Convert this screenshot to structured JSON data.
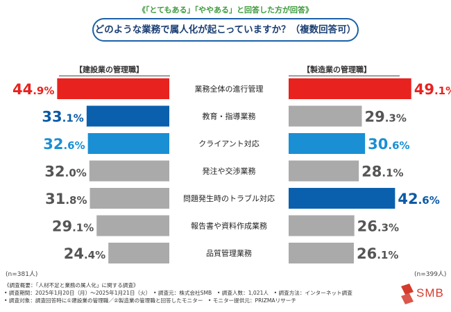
{
  "top_note": "《「とてもある」「ややある」と回答した方が回答》",
  "question": "どのような業務で属人化が起こっていますか？（複数回答可）",
  "left_label": "【建設業の管理職】",
  "right_label": "【製造業の管理職】",
  "left_n": "(n=381人)",
  "right_n": "(n=399人)",
  "colors": {
    "red": "#e8231f",
    "dark_blue": "#0b60ad",
    "light_blue": "#1a8fd4",
    "gray": "#aaaaaa",
    "red_text": "#e8231f",
    "dark_blue_text": "#0b5aa6",
    "light_blue_text": "#1a8fd4",
    "gray_text": "#555555"
  },
  "chart_data": {
    "type": "bar",
    "orientation": "horizontal-butterfly",
    "title": "どのような業務で属人化が起こっていますか？（複数回答可）",
    "categories": [
      "業務全体の進行管理",
      "教育・指導業務",
      "クライアント対応",
      "発注や交渉業務",
      "問題発生時のトラブル対応",
      "報告書や資料作成業務",
      "品質管理業務"
    ],
    "series": [
      {
        "name": "【建設業の管理職】",
        "values": [
          44.9,
          33.1,
          32.6,
          32.0,
          31.8,
          29.1,
          24.4
        ],
        "labels": [
          "44.9%",
          "33.1%",
          "32.6%",
          "32.0%",
          "31.8%",
          "29.1%",
          "24.4%"
        ],
        "color_keys": [
          "red",
          "dark_blue",
          "light_blue",
          "gray",
          "gray",
          "gray",
          "gray"
        ]
      },
      {
        "name": "【製造業の管理職】",
        "values": [
          49.1,
          29.3,
          30.6,
          28.1,
          42.6,
          26.3,
          26.1
        ],
        "labels": [
          "49.1%",
          "29.3%",
          "30.6%",
          "28.1%",
          "42.6%",
          "26.3%",
          "26.1%"
        ],
        "color_keys": [
          "red",
          "gray",
          "light_blue",
          "gray",
          "dark_blue",
          "gray",
          "gray"
        ]
      }
    ],
    "unit": "%"
  },
  "footer": {
    "line1": "《調査概要：「人材不足と業務の属人化」に関する調査》",
    "line2": "• 調査期間：2025年1月20日（月）～2025年1月21日（火）　• 調査元：株式会社SMB　• 調査人数：1,021人　• 調査方法：インターネット調査",
    "line3": "• 調査対象：調査回答時に①建設業の管理職／②製造業の管理職と回答したモニター　• モニター提供元：PRIZMAリサーチ"
  },
  "logo_text": "SMB"
}
